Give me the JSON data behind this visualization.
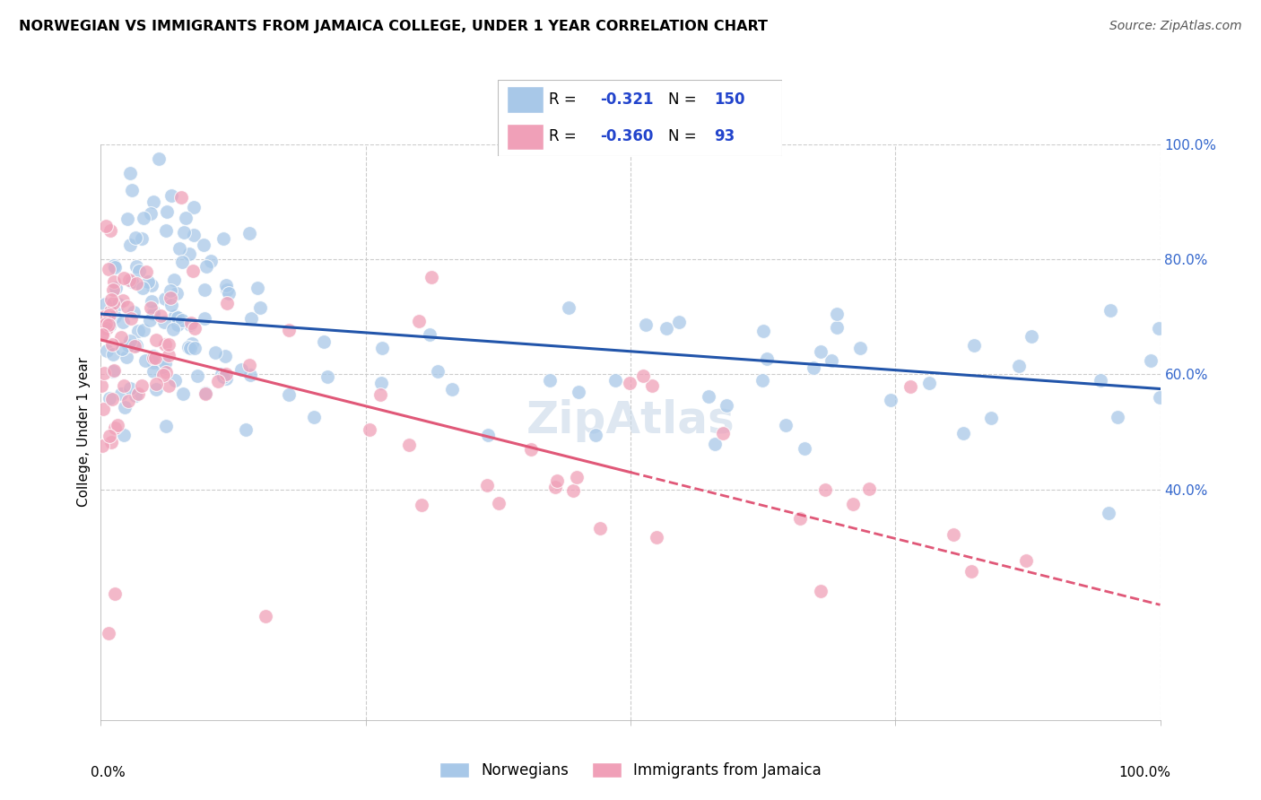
{
  "title": "NORWEGIAN VS IMMIGRANTS FROM JAMAICA COLLEGE, UNDER 1 YEAR CORRELATION CHART",
  "source": "Source: ZipAtlas.com",
  "ylabel": "College, Under 1 year",
  "legend_label1": "Norwegians",
  "legend_label2": "Immigrants from Jamaica",
  "r1": "-0.321",
  "n1": "150",
  "r2": "-0.360",
  "n2": "93",
  "blue_color": "#A8C8E8",
  "pink_color": "#F0A0B8",
  "blue_line_color": "#2255AA",
  "pink_line_color": "#E05878",
  "background_color": "#FFFFFF",
  "grid_color": "#CCCCCC",
  "watermark_color": "#C8D8E8",
  "xlim": [
    0,
    100
  ],
  "ylim": [
    0,
    100
  ],
  "blue_line_x0": 0,
  "blue_line_y0": 70.5,
  "blue_line_x1": 100,
  "blue_line_y1": 57.5,
  "pink_line_x0": 0,
  "pink_line_y0": 66.0,
  "pink_line_x1": 100,
  "pink_line_y1": 20.0,
  "pink_solid_end": 50
}
